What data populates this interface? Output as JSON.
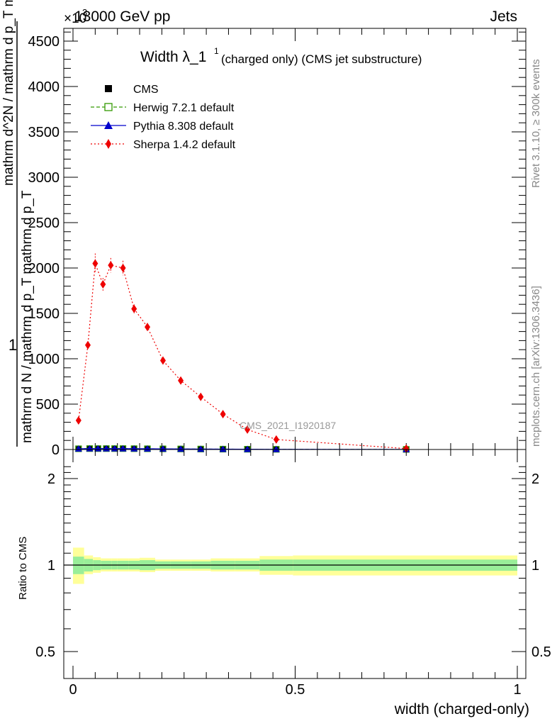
{
  "header": {
    "left": "13000 GeV pp",
    "right": "Jets",
    "exponent": "×10",
    "exponent_power": "3"
  },
  "side_labels": {
    "rivet": "Rivet 3.1.10, ≥ 300k events",
    "mcplots": "mcplots.cern.ch [arXiv:1306.3436]"
  },
  "main_plot": {
    "title": "Width λ_1",
    "title_sup": "1",
    "title_suffix": "(charged only) (CMS jet substructure)",
    "analysis_label": "CMS_2021_I1920187",
    "ylabel_numerator": "1",
    "ylabel_denominator": "mathrm d N / mathrm d p_T mathrm d p_T",
    "ylabel_overlay": "mathrm d^2N / mathrm d p_T mathrm d lambda",
    "yticks": [
      "0",
      "500",
      "1000",
      "1500",
      "2000",
      "2500",
      "3000",
      "3500",
      "4000",
      "4500"
    ]
  },
  "legend": [
    {
      "label": "CMS",
      "color": "#000000",
      "marker": "square"
    },
    {
      "label": "Herwig 7.2.1 default",
      "color": "#339900",
      "marker": "open-square",
      "line": "dashed"
    },
    {
      "label": "Pythia 8.308 default",
      "color": "#0000cc",
      "marker": "triangle",
      "line": "solid"
    },
    {
      "label": "Sherpa 1.4.2 default",
      "color": "#ee0000",
      "marker": "diamond",
      "line": "dotted"
    }
  ],
  "ratio_plot": {
    "ylabel": "Ratio to CMS",
    "yticks": [
      "0.5",
      "1",
      "2"
    ],
    "xlabel": "width (charged-only)",
    "xticks": [
      "0",
      "0.5",
      "1"
    ]
  },
  "colors": {
    "band_inner": "#99ee99",
    "band_outer": "#ffff99"
  },
  "chart_data": {
    "type": "line",
    "xlim": [
      0,
      1
    ],
    "ylim": [
      0,
      4700
    ],
    "ratio_ylim": [
      0.42,
      2.3
    ],
    "ratio_scale": "log",
    "series": [
      {
        "name": "CMS",
        "x": [
          0.0125,
          0.0375,
          0.05625,
          0.075,
          0.09375,
          0.1125,
          0.1375,
          0.1675,
          0.2025,
          0.2425,
          0.2875,
          0.3375,
          0.3925,
          0.4575,
          0.75
        ],
        "values": [
          8,
          10,
          10,
          10,
          10,
          10,
          9,
          8,
          7,
          6,
          5,
          4,
          3,
          2,
          1
        ]
      },
      {
        "name": "Herwig 7.2.1 default",
        "x": [
          0.0125,
          0.0375,
          0.05625,
          0.075,
          0.09375,
          0.1125,
          0.1375,
          0.1675,
          0.2025,
          0.2425,
          0.2875,
          0.3375,
          0.3925,
          0.4575,
          0.75
        ],
        "values": [
          8,
          10,
          10,
          10,
          10,
          10,
          9,
          8,
          7,
          6,
          5,
          4,
          3,
          2,
          1
        ]
      },
      {
        "name": "Pythia 8.308 default",
        "x": [
          0.0125,
          0.0375,
          0.05625,
          0.075,
          0.09375,
          0.1125,
          0.1375,
          0.1675,
          0.2025,
          0.2425,
          0.2875,
          0.3375,
          0.3925,
          0.4575,
          0.75
        ],
        "values": [
          8,
          10,
          10,
          10,
          10,
          10,
          9,
          8,
          7,
          6,
          5,
          4,
          3,
          2,
          1
        ]
      },
      {
        "name": "Sherpa 1.4.2 default",
        "x": [
          0.0125,
          0.0335,
          0.05,
          0.0675,
          0.085,
          0.1125,
          0.1375,
          0.1675,
          0.2025,
          0.2425,
          0.2875,
          0.3375,
          0.3925,
          0.4575,
          0.75
        ],
        "values": [
          320,
          1150,
          2050,
          1820,
          2030,
          2000,
          1550,
          1350,
          980,
          760,
          580,
          390,
          220,
          110,
          10
        ],
        "errors": [
          30,
          40,
          110,
          70,
          80,
          80,
          50,
          45,
          35,
          25,
          20,
          15,
          12,
          10,
          5
        ]
      }
    ],
    "ratio_bands": {
      "edges": [
        0,
        0.025,
        0.045,
        0.0625,
        0.0875,
        0.1,
        0.125,
        0.15,
        0.185,
        0.22,
        0.265,
        0.31,
        0.365,
        0.42,
        0.495,
        1.0
      ],
      "inner_lo": [
        0.93,
        0.95,
        0.96,
        0.965,
        0.965,
        0.965,
        0.965,
        0.96,
        0.97,
        0.97,
        0.97,
        0.965,
        0.965,
        0.955,
        0.955
      ],
      "inner_hi": [
        1.07,
        1.05,
        1.04,
        1.035,
        1.035,
        1.035,
        1.035,
        1.04,
        1.03,
        1.03,
        1.03,
        1.035,
        1.035,
        1.045,
        1.045
      ],
      "outer_lo": [
        0.86,
        0.93,
        0.94,
        0.95,
        0.95,
        0.95,
        0.95,
        0.945,
        0.955,
        0.955,
        0.955,
        0.95,
        0.95,
        0.925,
        0.92
      ],
      "outer_hi": [
        1.15,
        1.08,
        1.065,
        1.055,
        1.055,
        1.055,
        1.055,
        1.06,
        1.045,
        1.045,
        1.045,
        1.055,
        1.055,
        1.075,
        1.08
      ]
    }
  }
}
